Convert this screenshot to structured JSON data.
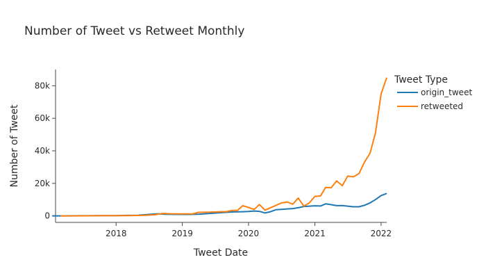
{
  "chart_data": {
    "type": "line",
    "title": "Number of Tweet vs Retweet Monthly",
    "xlabel": "Tweet Date",
    "ylabel": "Number of Tweet",
    "legend_title": "Tweet Type",
    "legend_placement": "top-right",
    "grid": false,
    "xlim": [
      "2017-02-01",
      "2022-02-01"
    ],
    "ylim": [
      -4000,
      90000
    ],
    "x_ticks": [
      {
        "value": "2018-01-01",
        "label": "2018"
      },
      {
        "value": "2019-01-01",
        "label": "2019"
      },
      {
        "value": "2020-01-01",
        "label": "2020"
      },
      {
        "value": "2021-01-01",
        "label": "2021"
      },
      {
        "value": "2022-01-01",
        "label": "2022"
      }
    ],
    "y_ticks": [
      {
        "value": 0,
        "label": "0"
      },
      {
        "value": 20000,
        "label": "20k"
      },
      {
        "value": 40000,
        "label": "40k"
      },
      {
        "value": 60000,
        "label": "60k"
      },
      {
        "value": 80000,
        "label": "80k"
      }
    ],
    "series": [
      {
        "name": "origin_tweet",
        "color": "#1f77b4",
        "points": [
          [
            "2017-01-15",
            0
          ],
          [
            "2017-04-01",
            0
          ],
          [
            "2017-07-01",
            100
          ],
          [
            "2017-10-01",
            150
          ],
          [
            "2018-01-01",
            200
          ],
          [
            "2018-03-01",
            300
          ],
          [
            "2018-05-01",
            400
          ],
          [
            "2018-07-01",
            900
          ],
          [
            "2018-08-15",
            1300
          ],
          [
            "2018-10-01",
            1000
          ],
          [
            "2018-12-01",
            900
          ],
          [
            "2019-02-01",
            900
          ],
          [
            "2019-04-01",
            1000
          ],
          [
            "2019-06-01",
            1500
          ],
          [
            "2019-08-01",
            2000
          ],
          [
            "2019-10-01",
            2400
          ],
          [
            "2019-12-01",
            2600
          ],
          [
            "2020-01-01",
            2700
          ],
          [
            "2020-02-01",
            3000
          ],
          [
            "2020-03-01",
            2800
          ],
          [
            "2020-04-01",
            1800
          ],
          [
            "2020-05-01",
            2600
          ],
          [
            "2020-06-01",
            3800
          ],
          [
            "2020-07-01",
            4000
          ],
          [
            "2020-08-01",
            4300
          ],
          [
            "2020-09-01",
            4500
          ],
          [
            "2020-10-01",
            5000
          ],
          [
            "2020-11-01",
            5800
          ],
          [
            "2020-12-01",
            6000
          ],
          [
            "2021-01-01",
            6200
          ],
          [
            "2021-02-01",
            6100
          ],
          [
            "2021-03-01",
            7400
          ],
          [
            "2021-04-01",
            6900
          ],
          [
            "2021-05-01",
            6300
          ],
          [
            "2021-06-01",
            6400
          ],
          [
            "2021-07-01",
            6000
          ],
          [
            "2021-08-01",
            5600
          ],
          [
            "2021-09-01",
            5600
          ],
          [
            "2021-10-01",
            6500
          ],
          [
            "2021-11-01",
            8000
          ],
          [
            "2021-12-01",
            10000
          ],
          [
            "2022-01-01",
            12500
          ],
          [
            "2022-02-01",
            13800
          ]
        ]
      },
      {
        "name": "retweeted",
        "color": "#ff7f0e",
        "points": [
          [
            "2017-03-01",
            0
          ],
          [
            "2017-06-01",
            0
          ],
          [
            "2017-09-01",
            100
          ],
          [
            "2017-12-01",
            200
          ],
          [
            "2018-03-01",
            200
          ],
          [
            "2018-06-01",
            300
          ],
          [
            "2018-08-01",
            700
          ],
          [
            "2018-09-15",
            1500
          ],
          [
            "2018-11-01",
            1300
          ],
          [
            "2019-01-01",
            1200
          ],
          [
            "2019-03-01",
            1300
          ],
          [
            "2019-04-01",
            2200
          ],
          [
            "2019-06-01",
            2300
          ],
          [
            "2019-08-01",
            2600
          ],
          [
            "2019-09-01",
            2600
          ],
          [
            "2019-10-01",
            3400
          ],
          [
            "2019-11-01",
            3400
          ],
          [
            "2019-12-01",
            6300
          ],
          [
            "2020-01-01",
            5200
          ],
          [
            "2020-02-01",
            4000
          ],
          [
            "2020-03-01",
            7000
          ],
          [
            "2020-04-01",
            3500
          ],
          [
            "2020-05-01",
            5000
          ],
          [
            "2020-06-01",
            6500
          ],
          [
            "2020-07-01",
            8000
          ],
          [
            "2020-08-01",
            8500
          ],
          [
            "2020-09-01",
            7200
          ],
          [
            "2020-10-01",
            11000
          ],
          [
            "2020-11-01",
            6000
          ],
          [
            "2020-12-01",
            8000
          ],
          [
            "2021-01-01",
            12000
          ],
          [
            "2021-02-01",
            12300
          ],
          [
            "2021-03-01",
            17500
          ],
          [
            "2021-04-01",
            17300
          ],
          [
            "2021-05-01",
            21500
          ],
          [
            "2021-06-01",
            18500
          ],
          [
            "2021-07-01",
            24500
          ],
          [
            "2021-08-01",
            24000
          ],
          [
            "2021-09-01",
            26000
          ],
          [
            "2021-10-01",
            33000
          ],
          [
            "2021-11-01",
            38500
          ],
          [
            "2021-12-01",
            51000
          ],
          [
            "2022-01-01",
            75000
          ],
          [
            "2022-02-01",
            85000
          ]
        ]
      }
    ]
  }
}
